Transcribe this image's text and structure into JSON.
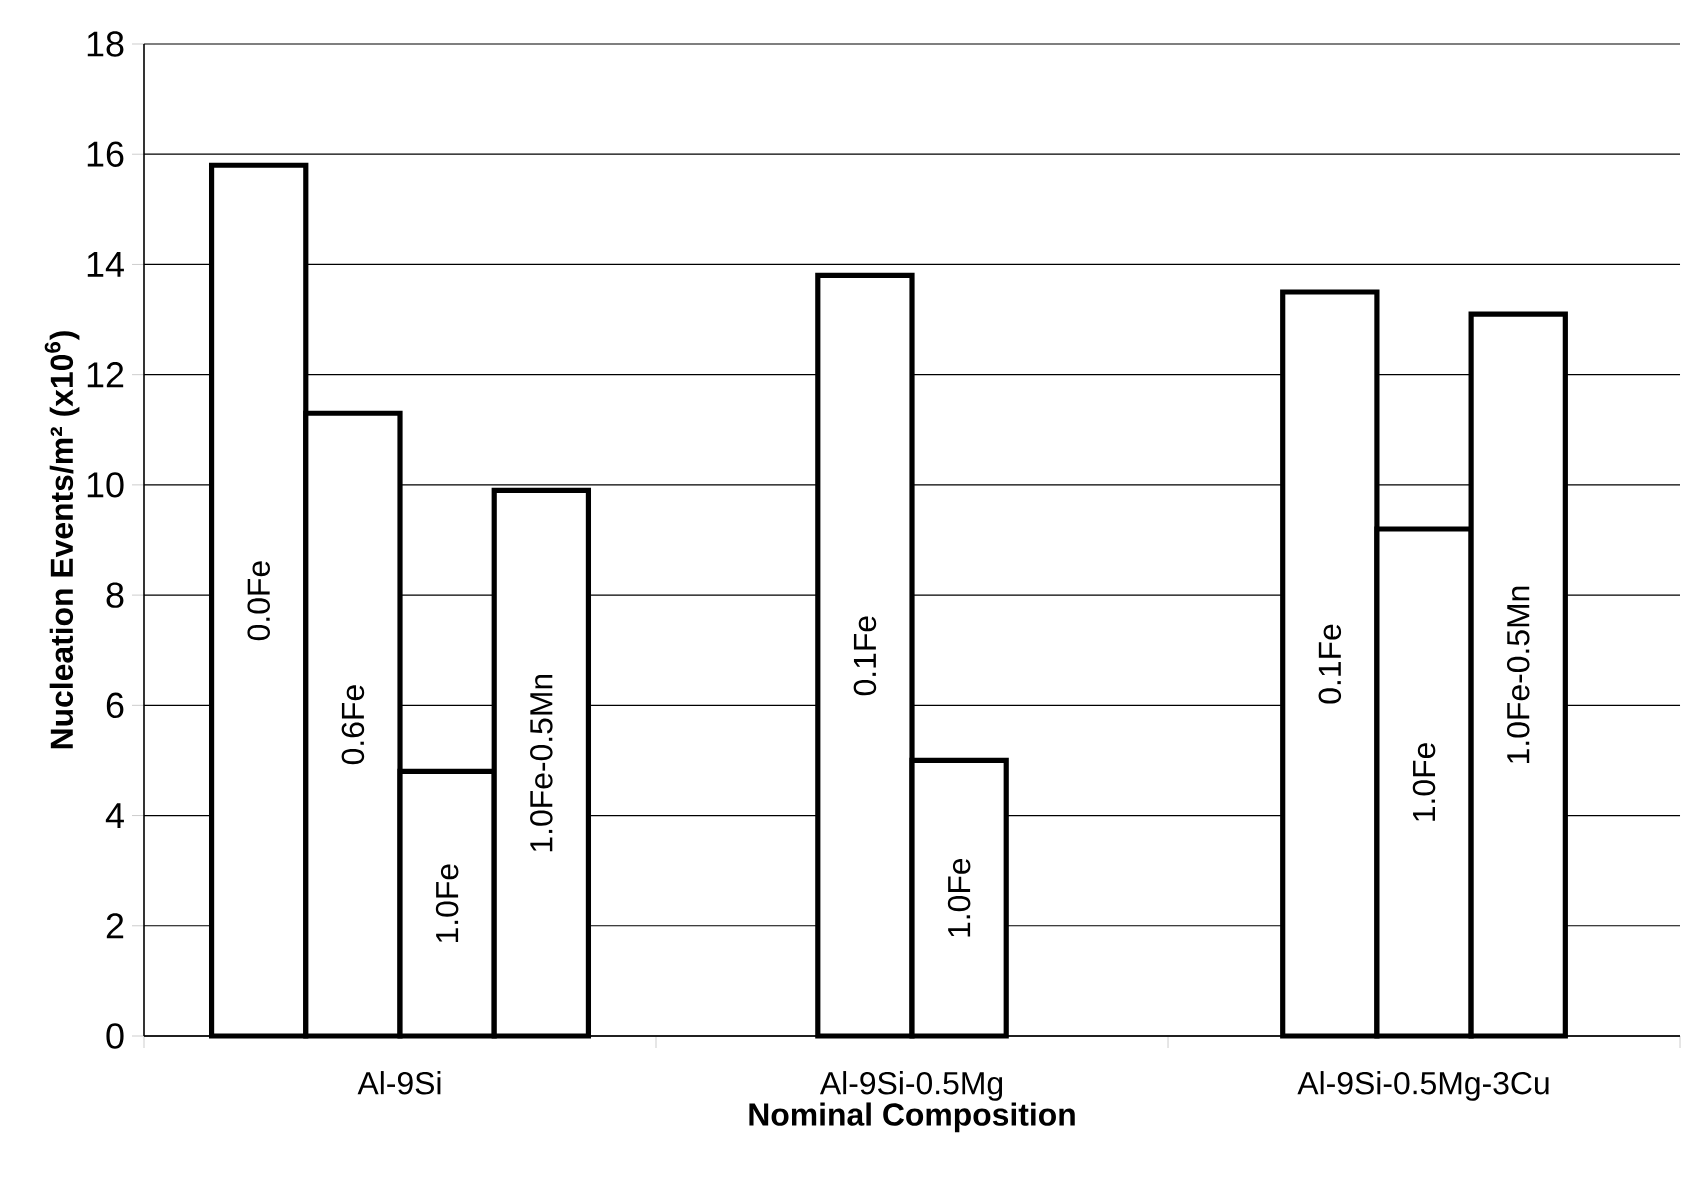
{
  "chart_data": {
    "type": "bar",
    "xlabel": "Nominal Composition",
    "ylabel": "Nucleation Events/m² (x10$^{6}$)",
    "categories": [
      "Al-9Si",
      "Al-9Si-0.5Mg",
      "Al-9Si-0.5Mg-3Cu"
    ],
    "series": [
      {
        "name": "0.0Fe",
        "color": "#ffffff",
        "values": [
          15.8,
          null,
          null
        ]
      },
      {
        "name": "0.1Fe",
        "color": "#ffffff",
        "values": [
          null,
          13.8,
          13.5
        ]
      },
      {
        "name": "0.6Fe",
        "color": "#ffffff",
        "values": [
          11.3,
          null,
          null
        ]
      },
      {
        "name": "1.0Fe",
        "color": "#ffffff",
        "values": [
          4.8,
          5.0,
          9.2
        ]
      },
      {
        "name": "1.0Fe-0.5Mn",
        "color": "#ffffff",
        "values": [
          9.9,
          null,
          13.1
        ]
      }
    ],
    "ylim": [
      0,
      18
    ],
    "yticks": [
      0,
      2,
      4,
      6,
      8,
      10,
      12,
      14,
      16,
      18
    ],
    "grid": "y"
  }
}
